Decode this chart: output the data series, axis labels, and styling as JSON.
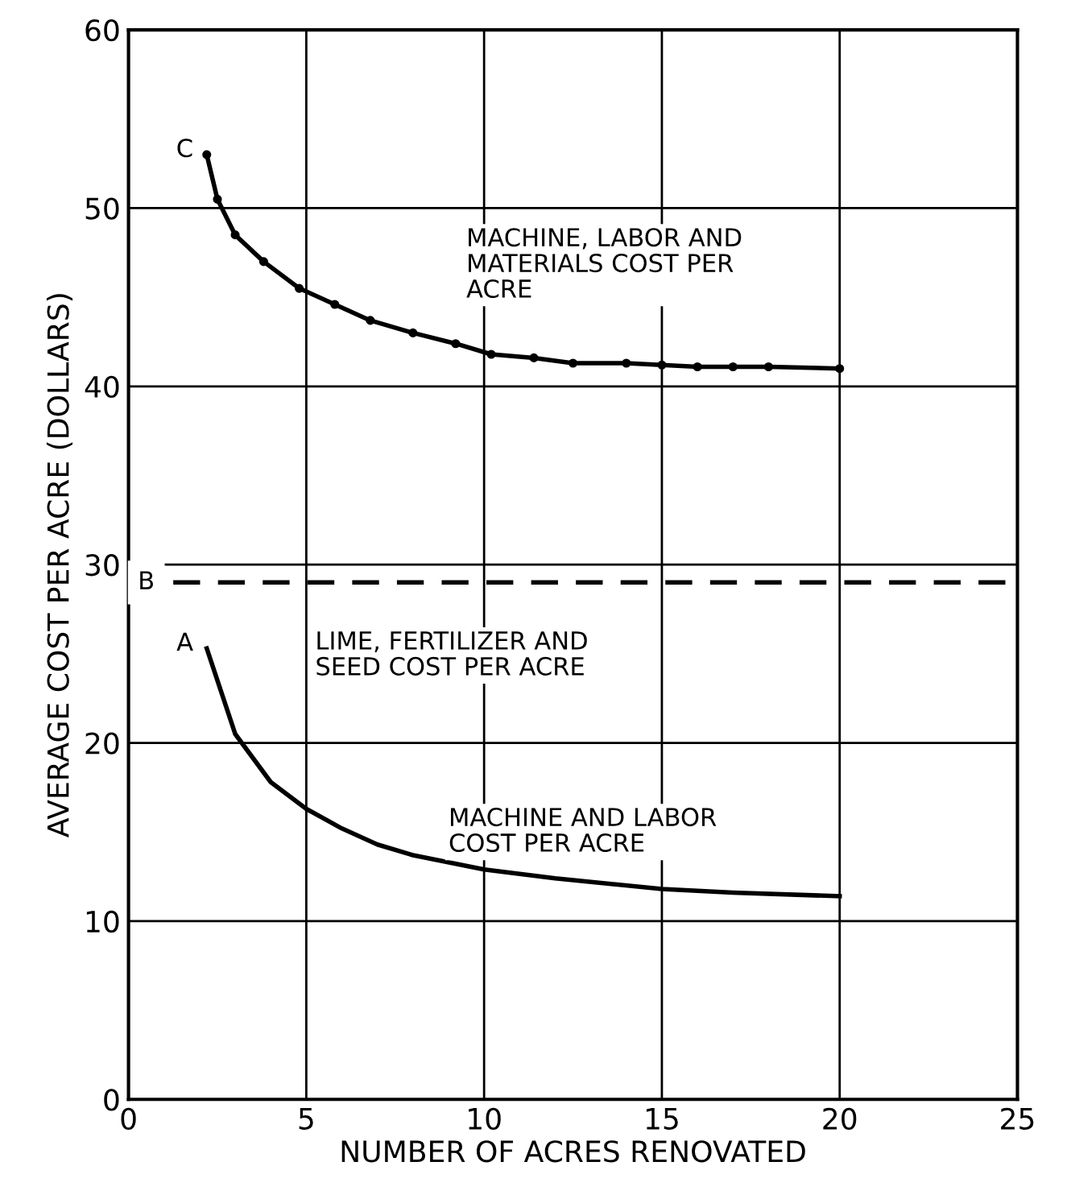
{
  "chart_data": {
    "type": "line",
    "xlabel": "NUMBER OF ACRES RENOVATED",
    "ylabel": "AVERAGE COST PER ACRE (DOLLARS)",
    "xlim": [
      0,
      25
    ],
    "xticks": [
      0,
      5,
      10,
      15,
      20,
      25
    ],
    "ylim": [
      0,
      60
    ],
    "yticks": [
      0,
      10,
      20,
      30,
      40,
      50,
      60
    ],
    "grid": true,
    "series": [
      {
        "name": "C",
        "color": "#000000",
        "marker": "circle",
        "x": [
          2.2,
          2.5,
          3,
          3.8,
          4.8,
          5.8,
          6.8,
          8,
          9.2,
          10.2,
          11.4,
          12.5,
          14,
          15,
          16,
          17,
          18,
          20
        ],
        "values": [
          53,
          50.5,
          48.5,
          47,
          45.5,
          44.6,
          43.7,
          43,
          42.4,
          41.8,
          41.6,
          41.3,
          41.3,
          41.2,
          41.1,
          41.1,
          41.1,
          41.0
        ]
      },
      {
        "name": "A",
        "color": "#000000",
        "marker": "none",
        "x": [
          2.2,
          3,
          4,
          5,
          6,
          7,
          8,
          10,
          12,
          15,
          17,
          20
        ],
        "values": [
          25.3,
          20.5,
          17.8,
          16.3,
          15.2,
          14.3,
          13.7,
          12.9,
          12.4,
          11.8,
          11.6,
          11.4
        ]
      }
    ],
    "ref_lines": [
      {
        "axis": "y",
        "value": 29,
        "label": "B",
        "line_style": "dashed",
        "color": "#000000"
      }
    ],
    "annotations": [
      "MACHINE, LABOR AND\nMATERIALS COST PER\nACRE",
      "LIME, FERTILIZER AND\nSEED COST PER ACRE",
      "MACHINE AND LABOR\nCOST PER ACRE"
    ]
  }
}
